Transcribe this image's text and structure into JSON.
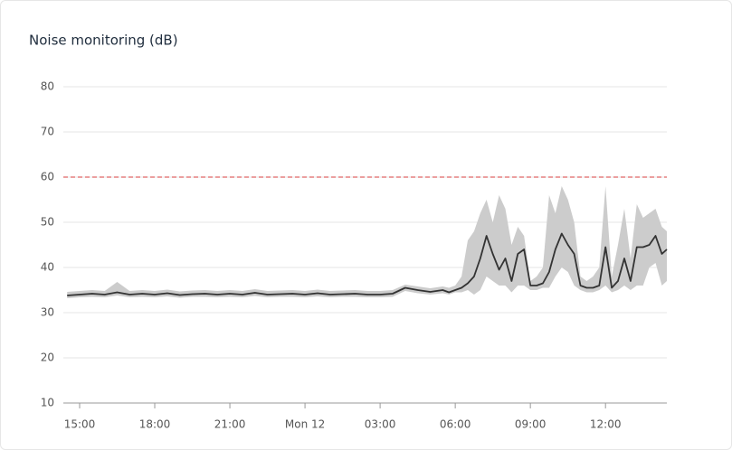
{
  "chart_data": {
    "type": "line",
    "title": "Noise monitoring (dB)",
    "x": [
      14.5,
      15,
      15.5,
      16,
      16.5,
      17,
      17.5,
      18,
      18.5,
      19,
      19.5,
      20,
      20.5,
      21,
      21.5,
      22,
      22.5,
      23,
      23.5,
      24,
      24.5,
      25,
      25.5,
      26,
      26.5,
      27,
      27.5,
      28,
      28.5,
      29,
      29.5,
      29.75,
      30,
      30.25,
      30.5,
      30.75,
      31,
      31.25,
      31.5,
      31.75,
      32,
      32.25,
      32.5,
      32.75,
      33,
      33.25,
      33.5,
      33.75,
      34,
      34.25,
      34.5,
      34.75,
      35,
      35.25,
      35.5,
      35.75,
      36,
      36.25,
      36.5,
      36.75,
      37,
      37.25,
      37.5,
      37.75,
      38,
      38.25,
      38.45
    ],
    "values": [
      33.8,
      34,
      34.2,
      34,
      34.5,
      34,
      34.2,
      34,
      34.3,
      33.9,
      34.1,
      34.2,
      34,
      34.2,
      34,
      34.4,
      34,
      34.1,
      34.2,
      34,
      34.3,
      34,
      34.1,
      34.2,
      34,
      34,
      34.2,
      35.5,
      35,
      34.6,
      35,
      34.5,
      35,
      35.5,
      36.5,
      38,
      42,
      47,
      43,
      39.5,
      42,
      37,
      43,
      44,
      36,
      36,
      36.5,
      39,
      44,
      47.5,
      45,
      43,
      36,
      35.5,
      35.5,
      36,
      44.5,
      35.5,
      37,
      42,
      37,
      44.5,
      44.5,
      45,
      47,
      43,
      44
    ],
    "color": "#333333",
    "band": {
      "color": "#cccccc",
      "lower": [
        33.2,
        33.4,
        33.5,
        33.4,
        33.8,
        33.4,
        33.5,
        33.4,
        33.6,
        33.3,
        33.5,
        33.5,
        33.4,
        33.5,
        33.4,
        33.7,
        33.4,
        33.5,
        33.5,
        33.4,
        33.6,
        33.4,
        33.5,
        33.5,
        33.4,
        33.4,
        33.5,
        34.8,
        34.3,
        34,
        34.3,
        34,
        34.5,
        34.5,
        35,
        34,
        35,
        38,
        37,
        36,
        36,
        34.5,
        36,
        36,
        35,
        35,
        35.5,
        35.5,
        38,
        40,
        39,
        36,
        35,
        34.5,
        34.5,
        35,
        36,
        34.5,
        35,
        36,
        35,
        36,
        36,
        40,
        41,
        36,
        37
      ],
      "upper": [
        34.6,
        34.8,
        35,
        34.8,
        36.8,
        34.8,
        35,
        34.8,
        35.1,
        34.7,
        34.9,
        35,
        34.8,
        35,
        34.8,
        35.2,
        34.8,
        34.9,
        35,
        34.8,
        35.1,
        34.8,
        34.9,
        35,
        34.8,
        34.8,
        35,
        36.2,
        35.8,
        35.4,
        35.8,
        35.5,
        36,
        38,
        46,
        48,
        52,
        55,
        50,
        56,
        53,
        45,
        49,
        47,
        37,
        38,
        40,
        56,
        52,
        58,
        55,
        50,
        38,
        37,
        38,
        40,
        58,
        38,
        45,
        53,
        42,
        54,
        51,
        52,
        53,
        49,
        48
      ]
    },
    "threshold": {
      "value": 60,
      "color": "#e06666"
    },
    "xlim": [
      14.35,
      38.45
    ],
    "xticks": [
      {
        "value": 15,
        "label": "15:00"
      },
      {
        "value": 18,
        "label": "18:00"
      },
      {
        "value": 21,
        "label": "21:00"
      },
      {
        "value": 24,
        "label": "Mon 12"
      },
      {
        "value": 27,
        "label": "03:00"
      },
      {
        "value": 30,
        "label": "06:00"
      },
      {
        "value": 33,
        "label": "09:00"
      },
      {
        "value": 36,
        "label": "12:00"
      }
    ],
    "ylim": [
      10,
      80
    ],
    "yticks": [
      10,
      20,
      30,
      40,
      50,
      60,
      70,
      80
    ],
    "grid": true
  }
}
